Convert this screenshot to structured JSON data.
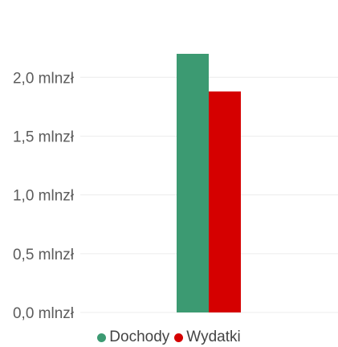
{
  "chart_data": {
    "type": "bar",
    "categories": [
      ""
    ],
    "series": [
      {
        "name": "Dochody",
        "values": [
          2.2
        ],
        "color": "#3c9a72"
      },
      {
        "name": "Wydatki",
        "values": [
          1.88
        ],
        "color": "#d50000"
      }
    ],
    "ylim": [
      0,
      2.2
    ],
    "yticks": [
      {
        "value": 0.0,
        "label": "0,0 mlnzł"
      },
      {
        "value": 0.5,
        "label": "0,5 mlnzł"
      },
      {
        "value": 1.0,
        "label": "1,0 mlnzł"
      },
      {
        "value": 1.5,
        "label": "1,5 mlnzł"
      },
      {
        "value": 2.0,
        "label": "2,0 mlnzł"
      }
    ],
    "grid": true,
    "legend_position": "bottom-center"
  }
}
